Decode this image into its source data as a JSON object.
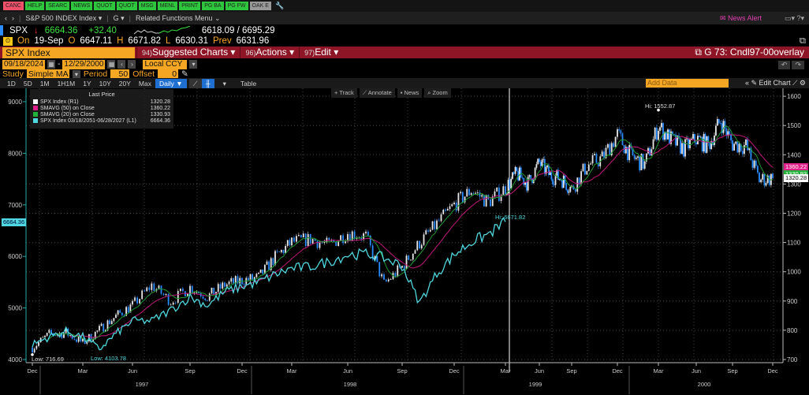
{
  "fn_buttons": [
    "CANC",
    "HELP",
    "SEARC",
    "NEWS",
    "QUOT",
    "QUOT",
    "MSG",
    "MENL",
    "PRINT",
    "PG BA",
    "PG FW",
    "OAK E"
  ],
  "nav": {
    "back": "‹",
    "fwd": "›",
    "security": "S&P 500 INDEX Index ▾",
    "function": "G ▾",
    "related": "Related Functions Menu ⌄",
    "news_alert": "News Alert",
    "icons": "▭▾ ?▾"
  },
  "ticker": {
    "symbol": "SPX",
    "arrow": "↓",
    "last": "6664.36",
    "change": "+32.40",
    "bid_ask": "6618.09 / 6695.29",
    "on_label": "On",
    "date": "19-Sep",
    "o_label": "O",
    "open": "6647.11",
    "h_label": "H",
    "high": "6671.82",
    "l_label": "L",
    "low": "6630.31",
    "prev_label": "Prev",
    "prev": "6631.96"
  },
  "toolbar": {
    "security_input": "SPX Index",
    "menus": [
      {
        "num": "94)",
        "label": "Suggested Charts ▾"
      },
      {
        "num": "96)",
        "label": "Actions ▾"
      },
      {
        "num": "97)",
        "label": "Edit ▾"
      }
    ],
    "chart_name": "G 73: Cndl97-00overlay"
  },
  "dates": {
    "start": "09/18/2024",
    "end": "12/29/2000",
    "currency": "Local CCY"
  },
  "study": {
    "label": "Study",
    "value": "Simple MA",
    "period_label": "Period",
    "period": "50",
    "offset_label": "Offset",
    "offset": "0"
  },
  "ranges": [
    "1D",
    "5D",
    "1M",
    "1H1M",
    "1Y",
    "10Y",
    "20Y",
    "Max"
  ],
  "frequency": "Daily ▼",
  "table_label": "Table",
  "add_data_placeholder": "Add Data",
  "edit_chart": "Edit Chart",
  "chart_tools": [
    "+ Track",
    "⟋ Annotate",
    "▪ News",
    "⌕ Zoom"
  ],
  "legend": {
    "title": "Last Price",
    "items": [
      {
        "label": "SPX Index  (R1)",
        "value": "1320.28",
        "color": "#ffffff"
      },
      {
        "label": "SMAVG (50)  on Close",
        "value": "1360.22",
        "color": "#e0208a"
      },
      {
        "label": "SMAVG (20)  on Close",
        "value": "1330.93",
        "color": "#22b23a"
      },
      {
        "label": "SPX Index 03/18/2051-06/28/2027   (L1)",
        "value": "6664.36",
        "color": "#4fd8df"
      }
    ]
  },
  "chart_data": {
    "type": "candlestick",
    "x_ticks": [
      "Dec",
      "Mar",
      "Jun",
      "Sep",
      "Dec",
      "Mar",
      "Jun",
      "Sep",
      "Dec",
      "Mar",
      "Jun",
      "Sep",
      "Dec",
      "Mar",
      "Jun",
      "Sep",
      "Dec"
    ],
    "x_years": [
      "1997",
      "1998",
      "1999",
      "2000"
    ],
    "right_axis": {
      "ticks": [
        1600,
        1500,
        1400,
        1300,
        1200,
        1100,
        1000,
        900,
        800,
        700
      ],
      "range": [
        700,
        1600
      ]
    },
    "left_axis": {
      "ticks": [
        9000,
        8000,
        7000,
        6000,
        5000,
        4000
      ],
      "range": [
        4000,
        9000
      ]
    },
    "grid": true,
    "months": [
      "1996-12",
      "1997-01",
      "1997-02",
      "1997-03",
      "1997-04",
      "1997-05",
      "1997-06",
      "1997-07",
      "1997-08",
      "1997-09",
      "1997-10",
      "1997-11",
      "1997-12",
      "1998-01",
      "1998-02",
      "1998-03",
      "1998-04",
      "1998-05",
      "1998-06",
      "1998-07",
      "1998-08",
      "1998-09",
      "1998-10",
      "1998-11",
      "1998-12",
      "1999-01",
      "1999-02",
      "1999-03",
      "1999-04",
      "1999-05",
      "1999-06",
      "1999-07",
      "1999-08",
      "1999-09",
      "1999-10",
      "1999-11",
      "1999-12",
      "2000-01",
      "2000-02",
      "2000-03",
      "2000-04",
      "2000-05",
      "2000-06",
      "2000-07",
      "2000-08",
      "2000-09",
      "2000-10",
      "2000-11",
      "2000-12"
    ],
    "spx_r1": [
      740.74,
      786.16,
      790.82,
      757.12,
      801.34,
      848.28,
      885.14,
      954.29,
      899.47,
      947.28,
      914.62,
      955.4,
      970.43,
      980.28,
      1049.34,
      1101.75,
      1111.75,
      1090.82,
      1133.84,
      1120.67,
      957.28,
      1017.01,
      1098.67,
      1163.63,
      1229.23,
      1279.64,
      1238.33,
      1286.37,
      1335.18,
      1301.84,
      1372.71,
      1328.72,
      1320.41,
      1282.71,
      1362.93,
      1388.91,
      1469.25,
      1394.46,
      1366.42,
      1498.58,
      1452.43,
      1420.6,
      1454.6,
      1430.83,
      1517.68,
      1436.51,
      1429.4,
      1314.95,
      1320.28
    ],
    "spx_overlay_l1": [
      4290,
      4440,
      4550,
      4440,
      4200,
      4500,
      4750,
      4750,
      4960,
      5210,
      5050,
      5310,
      5420,
      5500,
      5650,
      5770,
      5800,
      5900,
      6030,
      6050,
      5970,
      5820,
      5100,
      5670,
      6030,
      6280,
      6430,
      6671.82
    ],
    "annotations": {
      "low_r1": "Low: 716.69",
      "low_l1": "Low: 4103.78",
      "hi_l1": "Hi: 6671.82",
      "hi_r1": "Hi: 1552.87"
    },
    "last_badges": {
      "l1": "6664.36",
      "sma50": "1360.22",
      "sma20": "1330.93",
      "r1": "1320.28"
    },
    "colors": {
      "up": "#e8e8e8",
      "down": "#2a8cff",
      "sma50": "#c0187a",
      "sma20": "#1f9a30",
      "overlay": "#4fd8df"
    }
  }
}
